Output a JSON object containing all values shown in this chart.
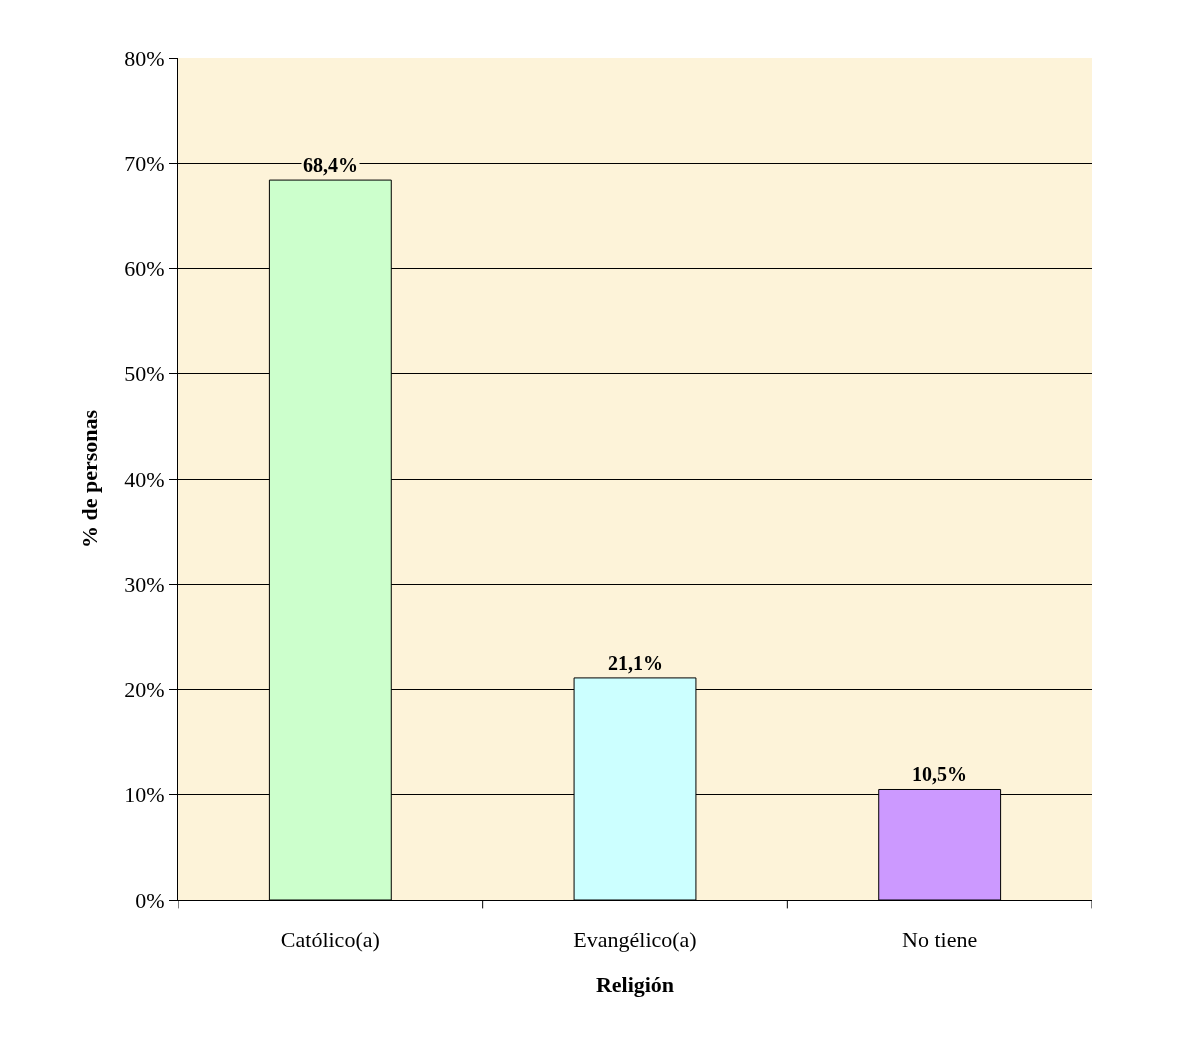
{
  "chart_data": {
    "type": "bar",
    "xlabel": "Religión",
    "ylabel": "% de personas",
    "categories": [
      "Católico(a)",
      "Evangélico(a)",
      "No tiene"
    ],
    "values": [
      68.4,
      21.1,
      10.5
    ],
    "colors": [
      "#ccffcc",
      "#ccffff",
      "#cc99ff"
    ],
    "value_labels": [
      "68,4%",
      "21,1%",
      "10,5%"
    ],
    "ylim": [
      0,
      80
    ],
    "yticks": [
      {
        "value": 0,
        "label": "0%"
      },
      {
        "value": 10,
        "label": "10%"
      },
      {
        "value": 20,
        "label": "20%"
      },
      {
        "value": 30,
        "label": "30%"
      },
      {
        "value": 40,
        "label": "40%"
      },
      {
        "value": 50,
        "label": "50%"
      },
      {
        "value": 60,
        "label": "60%"
      },
      {
        "value": 70,
        "label": "70%"
      },
      {
        "value": 80,
        "label": "80%"
      }
    ],
    "grid": "y"
  }
}
